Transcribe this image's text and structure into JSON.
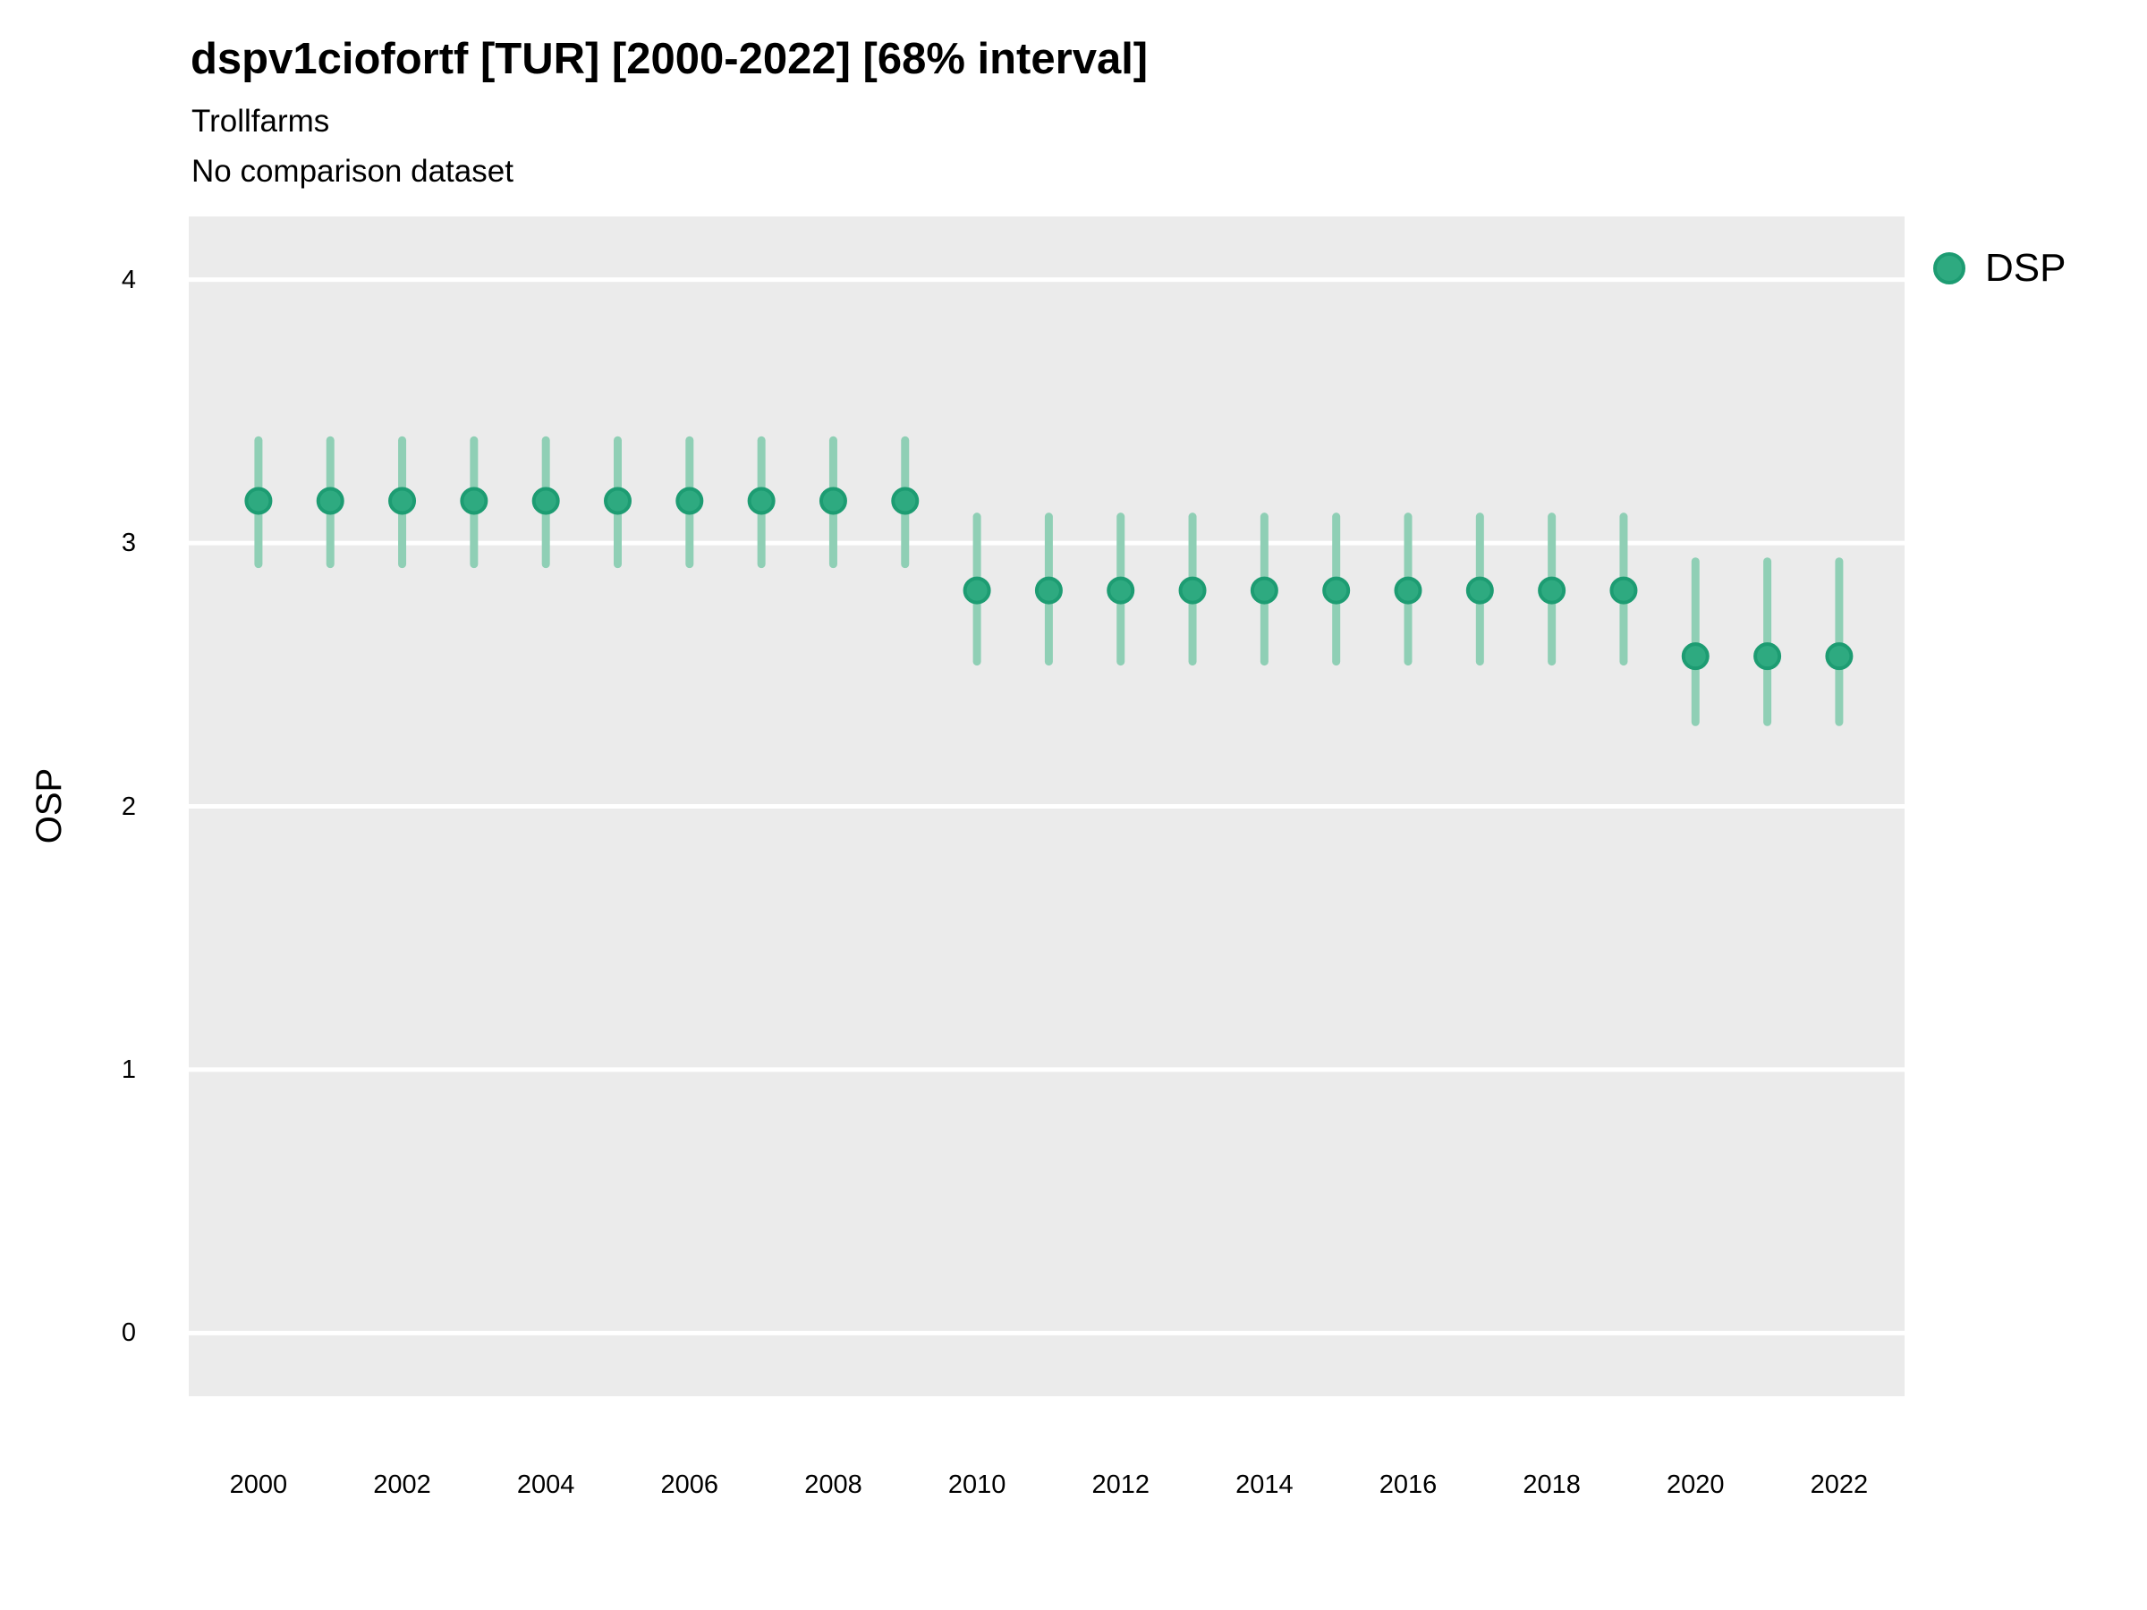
{
  "title": "dspv1ciofortf [TUR] [2000-2022] [68% interval]",
  "subtitle": "Trollfarms",
  "comparison_note": "No comparison dataset",
  "legend": {
    "label": "DSP"
  },
  "colors": {
    "point_fill": "#2EAA80",
    "point_stroke": "#1D9C72",
    "interval": "#8FCFB5",
    "panel_bg": "#EBEBEB",
    "gridline": "#FFFFFF",
    "text": "#000000"
  },
  "chart_data": {
    "type": "scatter",
    "title": "dspv1ciofortf [TUR] [2000-2022] [68% interval]",
    "subtitle": "Trollfarms",
    "note": "No comparison dataset",
    "xlabel": "",
    "ylabel": "OSP",
    "legend_position": "right",
    "grid": "horizontal-only",
    "xlim": [
      1999.03,
      2022.91
    ],
    "ylim": [
      -0.24,
      4.24
    ],
    "xticks": [
      2000,
      2002,
      2004,
      2006,
      2008,
      2010,
      2012,
      2014,
      2016,
      2018,
      2020,
      2022
    ],
    "yticks": [
      0,
      1,
      2,
      3,
      4
    ],
    "interval_level": "68%",
    "series": [
      {
        "name": "DSP",
        "points": [
          {
            "x": 2000,
            "y": 3.16,
            "lo": 2.92,
            "hi": 3.39
          },
          {
            "x": 2001,
            "y": 3.16,
            "lo": 2.92,
            "hi": 3.39
          },
          {
            "x": 2002,
            "y": 3.16,
            "lo": 2.92,
            "hi": 3.39
          },
          {
            "x": 2003,
            "y": 3.16,
            "lo": 2.92,
            "hi": 3.39
          },
          {
            "x": 2004,
            "y": 3.16,
            "lo": 2.92,
            "hi": 3.39
          },
          {
            "x": 2005,
            "y": 3.16,
            "lo": 2.92,
            "hi": 3.39
          },
          {
            "x": 2006,
            "y": 3.16,
            "lo": 2.92,
            "hi": 3.39
          },
          {
            "x": 2007,
            "y": 3.16,
            "lo": 2.92,
            "hi": 3.39
          },
          {
            "x": 2008,
            "y": 3.16,
            "lo": 2.92,
            "hi": 3.39
          },
          {
            "x": 2009,
            "y": 3.16,
            "lo": 2.92,
            "hi": 3.39
          },
          {
            "x": 2010,
            "y": 2.82,
            "lo": 2.55,
            "hi": 3.1
          },
          {
            "x": 2011,
            "y": 2.82,
            "lo": 2.55,
            "hi": 3.1
          },
          {
            "x": 2012,
            "y": 2.82,
            "lo": 2.55,
            "hi": 3.1
          },
          {
            "x": 2013,
            "y": 2.82,
            "lo": 2.55,
            "hi": 3.1
          },
          {
            "x": 2014,
            "y": 2.82,
            "lo": 2.55,
            "hi": 3.1
          },
          {
            "x": 2015,
            "y": 2.82,
            "lo": 2.55,
            "hi": 3.1
          },
          {
            "x": 2016,
            "y": 2.82,
            "lo": 2.55,
            "hi": 3.1
          },
          {
            "x": 2017,
            "y": 2.82,
            "lo": 2.55,
            "hi": 3.1
          },
          {
            "x": 2018,
            "y": 2.82,
            "lo": 2.55,
            "hi": 3.1
          },
          {
            "x": 2019,
            "y": 2.82,
            "lo": 2.55,
            "hi": 3.1
          },
          {
            "x": 2020,
            "y": 2.57,
            "lo": 2.32,
            "hi": 2.93
          },
          {
            "x": 2021,
            "y": 2.57,
            "lo": 2.32,
            "hi": 2.93
          },
          {
            "x": 2022,
            "y": 2.57,
            "lo": 2.32,
            "hi": 2.93
          }
        ]
      }
    ]
  }
}
